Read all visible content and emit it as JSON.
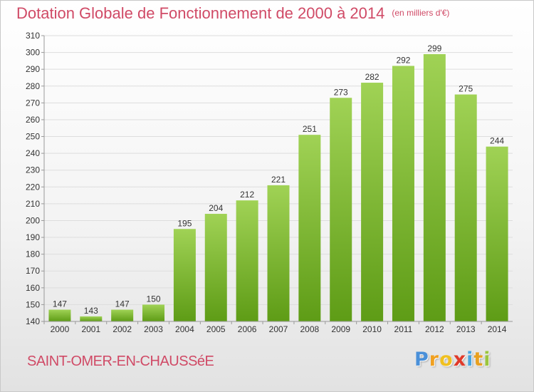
{
  "title": "Dotation Globale de Fonctionnement de 2000 à 2014",
  "unit_note": "(en milliers d'€)",
  "commune": "SAINT-OMER-EN-CHAUSSéE",
  "logo": {
    "letters": [
      "P",
      "r",
      "o",
      "x",
      "i",
      "t",
      "i"
    ],
    "colors": [
      "#4a90d9",
      "#f0a020",
      "#f0c020",
      "#e03a2a",
      "#4aa6e0",
      "#e8a020",
      "#9bc53d"
    ]
  },
  "colors": {
    "bar_top": "#a0d255",
    "bar_bottom": "#5e9c16",
    "grid": "#dddddd",
    "title": "#d04a66",
    "text": "#333333"
  },
  "chart_data": {
    "type": "bar",
    "categories": [
      "2000",
      "2001",
      "2002",
      "2003",
      "2004",
      "2005",
      "2006",
      "2007",
      "2008",
      "2009",
      "2010",
      "2011",
      "2012",
      "2013",
      "2014"
    ],
    "values": [
      147,
      143,
      147,
      150,
      195,
      204,
      212,
      221,
      251,
      273,
      282,
      292,
      299,
      275,
      244
    ],
    "ylim": [
      140,
      310
    ],
    "ytick_step": 10,
    "grid": true
  }
}
